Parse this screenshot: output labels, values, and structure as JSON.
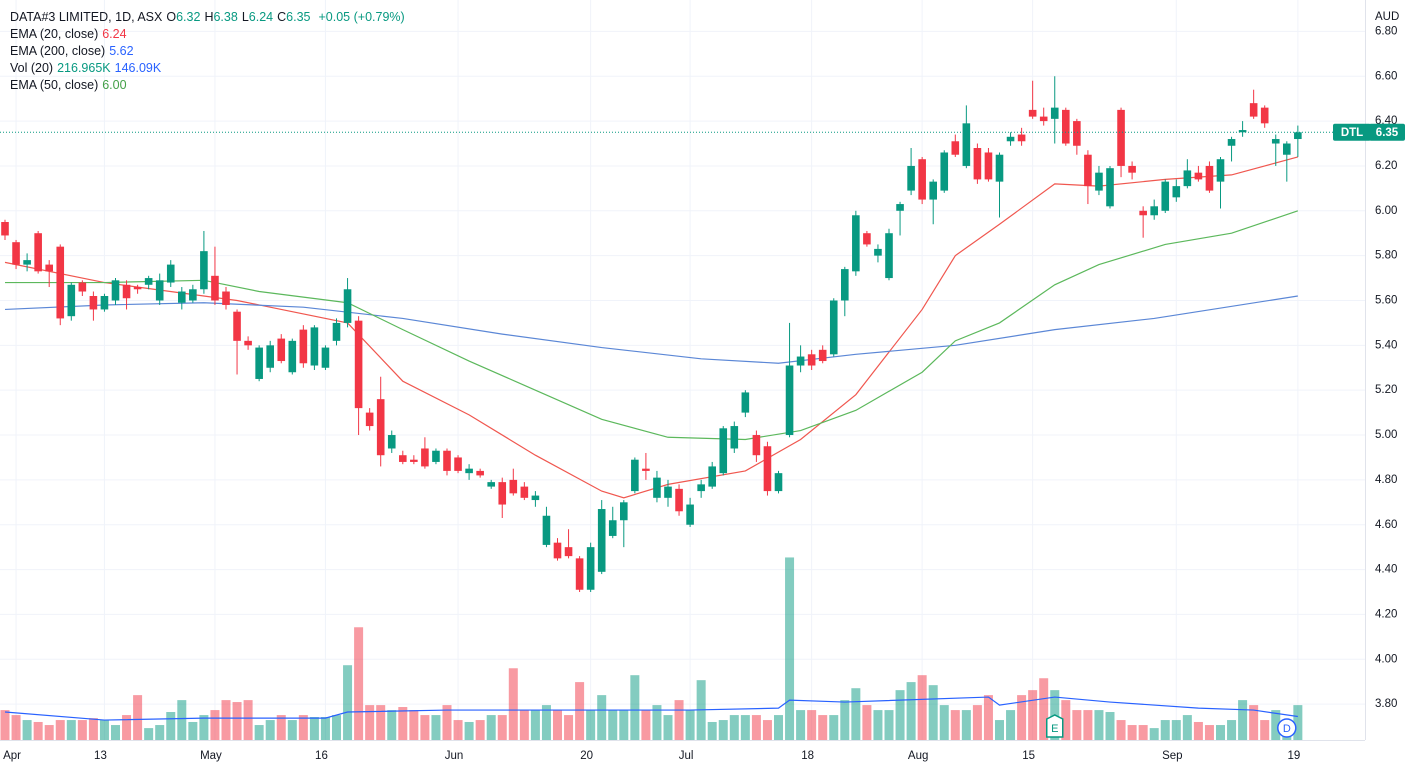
{
  "chart_data": {
    "type": "candlestick",
    "title": "DATA#3 LIMITED, 1D, ASX",
    "ohlc_header": [
      {
        "label": "O",
        "value": "6.32"
      },
      {
        "label": "H",
        "value": "6.38"
      },
      {
        "label": "L",
        "value": "6.24"
      },
      {
        "label": "C",
        "value": "6.35"
      }
    ],
    "change": "+0.05 (+0.79%)",
    "currency": "AUD",
    "price_tag": {
      "symbol": "DTL",
      "value": 6.35
    },
    "up_color": "#089981",
    "down_color": "#f23645",
    "grid": true,
    "categories": [
      null,
      "Apr",
      null,
      null,
      null,
      null,
      null,
      null,
      null,
      "13",
      null,
      null,
      null,
      null,
      null,
      null,
      null,
      null,
      null,
      "May",
      null,
      null,
      null,
      null,
      null,
      null,
      null,
      null,
      null,
      "16",
      null,
      null,
      null,
      null,
      null,
      null,
      null,
      null,
      null,
      null,
      null,
      "Jun",
      null,
      null,
      null,
      null,
      null,
      null,
      null,
      null,
      null,
      null,
      null,
      "20",
      null,
      null,
      null,
      null,
      null,
      null,
      null,
      null,
      "Jul",
      null,
      null,
      null,
      null,
      null,
      null,
      null,
      null,
      null,
      null,
      "18",
      null,
      null,
      null,
      null,
      null,
      null,
      null,
      null,
      null,
      "Aug",
      null,
      null,
      null,
      null,
      null,
      null,
      null,
      null,
      null,
      "15",
      null,
      null,
      null,
      null,
      null,
      null,
      null,
      null,
      null,
      null,
      null,
      null,
      "Sep",
      null,
      null,
      null,
      null,
      null,
      null,
      null,
      null,
      null,
      null,
      "19"
    ],
    "open": [
      5.95,
      5.86,
      5.76,
      5.9,
      5.76,
      5.84,
      5.53,
      5.68,
      5.62,
      5.56,
      5.6,
      5.67,
      5.66,
      5.67,
      5.6,
      5.68,
      5.59,
      5.6,
      5.65,
      5.71,
      5.64,
      5.55,
      5.42,
      5.25,
      5.3,
      5.43,
      5.28,
      5.47,
      5.31,
      5.3,
      5.42,
      5.5,
      5.51,
      5.1,
      5.16,
      4.94,
      4.91,
      4.89,
      4.94,
      4.88,
      4.93,
      4.9,
      4.83,
      4.84,
      4.77,
      4.79,
      4.8,
      4.77,
      4.71,
      4.51,
      4.52,
      4.5,
      4.45,
      4.31,
      4.39,
      4.55,
      4.62,
      4.75,
      4.85,
      4.72,
      4.72,
      4.76,
      4.6,
      4.75,
      4.77,
      4.83,
      4.94,
      5.1,
      5.0,
      4.95,
      4.75,
      5.0,
      5.31,
      5.36,
      5.38,
      5.36,
      5.6,
      5.73,
      5.9,
      5.8,
      5.7,
      6.0,
      6.09,
      6.23,
      6.05,
      6.09,
      6.31,
      6.2,
      6.28,
      6.26,
      6.13,
      6.31,
      6.34,
      6.45,
      6.42,
      6.41,
      6.45,
      6.4,
      6.25,
      6.09,
      6.02,
      6.45,
      6.2,
      6.0,
      5.98,
      6.0,
      6.06,
      6.11,
      6.17,
      6.2,
      6.13,
      6.29,
      6.35,
      6.48,
      6.46,
      6.3,
      6.25,
      6.32
    ],
    "high": [
      5.96,
      5.87,
      5.81,
      5.91,
      5.78,
      5.85,
      5.68,
      5.69,
      5.64,
      5.63,
      5.7,
      5.69,
      5.67,
      5.71,
      5.72,
      5.78,
      5.66,
      5.67,
      5.91,
      5.84,
      5.66,
      5.56,
      5.44,
      5.4,
      5.42,
      5.45,
      5.43,
      5.49,
      5.49,
      5.4,
      5.52,
      5.7,
      5.53,
      5.12,
      5.26,
      5.02,
      4.93,
      4.91,
      4.99,
      4.94,
      4.94,
      4.91,
      4.87,
      4.85,
      4.8,
      4.81,
      4.85,
      4.79,
      4.75,
      4.68,
      4.54,
      4.58,
      4.46,
      4.52,
      4.71,
      4.68,
      4.71,
      4.9,
      4.92,
      4.84,
      4.8,
      4.78,
      4.72,
      4.8,
      4.88,
      5.04,
      5.06,
      5.2,
      5.02,
      4.97,
      4.84,
      5.5,
      5.4,
      5.38,
      5.4,
      5.61,
      5.75,
      6.0,
      5.91,
      5.85,
      5.92,
      6.04,
      6.28,
      6.24,
      6.14,
      6.27,
      6.34,
      6.47,
      6.3,
      6.28,
      6.26,
      6.35,
      6.37,
      6.58,
      6.46,
      6.6,
      6.46,
      6.41,
      6.27,
      6.2,
      6.2,
      6.46,
      6.22,
      6.02,
      6.05,
      6.14,
      6.14,
      6.23,
      6.2,
      6.22,
      6.24,
      6.33,
      6.4,
      6.54,
      6.47,
      6.34,
      6.31,
      6.38
    ],
    "low": [
      5.87,
      5.74,
      5.73,
      5.72,
      5.66,
      5.49,
      5.51,
      5.62,
      5.51,
      5.55,
      5.58,
      5.56,
      5.63,
      5.65,
      5.58,
      5.66,
      5.56,
      5.59,
      5.63,
      5.58,
      5.56,
      5.27,
      5.38,
      5.24,
      5.28,
      5.32,
      5.27,
      5.3,
      5.29,
      5.29,
      5.4,
      5.48,
      5.0,
      5.02,
      4.86,
      4.92,
      4.87,
      4.87,
      4.85,
      4.87,
      4.82,
      4.83,
      4.8,
      4.81,
      4.76,
      4.63,
      4.73,
      4.71,
      4.68,
      4.5,
      4.44,
      4.45,
      4.3,
      4.3,
      4.38,
      4.54,
      4.5,
      4.74,
      4.8,
      4.7,
      4.68,
      4.64,
      4.59,
      4.72,
      4.76,
      4.82,
      4.92,
      5.08,
      4.88,
      4.73,
      4.74,
      4.99,
      5.28,
      5.29,
      5.32,
      5.35,
      5.53,
      5.71,
      5.84,
      5.77,
      5.69,
      5.89,
      6.07,
      6.03,
      5.94,
      6.08,
      6.24,
      6.19,
      6.12,
      6.13,
      5.97,
      6.29,
      6.29,
      6.41,
      6.38,
      6.3,
      6.29,
      6.25,
      6.03,
      6.07,
      6.01,
      6.15,
      6.14,
      5.88,
      5.96,
      5.99,
      6.04,
      6.1,
      6.13,
      6.08,
      6.01,
      6.22,
      6.33,
      6.41,
      6.37,
      6.2,
      6.13,
      6.24
    ],
    "close": [
      5.89,
      5.76,
      5.78,
      5.73,
      5.73,
      5.52,
      5.67,
      5.64,
      5.56,
      5.62,
      5.69,
      5.61,
      5.65,
      5.7,
      5.69,
      5.76,
      5.64,
      5.65,
      5.82,
      5.6,
      5.58,
      5.42,
      5.4,
      5.39,
      5.4,
      5.33,
      5.42,
      5.32,
      5.48,
      5.39,
      5.5,
      5.65,
      5.12,
      5.04,
      4.91,
      5.0,
      4.88,
      4.88,
      4.86,
      4.93,
      4.84,
      4.84,
      4.85,
      4.82,
      4.79,
      4.69,
      4.74,
      4.72,
      4.73,
      4.64,
      4.45,
      4.46,
      4.31,
      4.5,
      4.67,
      4.62,
      4.7,
      4.89,
      4.84,
      4.81,
      4.77,
      4.66,
      4.69,
      4.78,
      4.86,
      5.03,
      5.04,
      5.19,
      4.91,
      4.75,
      4.83,
      5.31,
      5.35,
      5.31,
      5.33,
      5.6,
      5.74,
      5.98,
      5.85,
      5.83,
      5.9,
      6.03,
      6.2,
      6.05,
      6.13,
      6.26,
      6.25,
      6.39,
      6.14,
      6.14,
      6.25,
      6.33,
      6.31,
      6.42,
      6.4,
      6.46,
      6.3,
      6.29,
      6.11,
      6.17,
      6.19,
      6.2,
      6.17,
      5.98,
      6.02,
      6.13,
      6.11,
      6.18,
      6.14,
      6.09,
      6.23,
      6.32,
      6.36,
      6.42,
      6.39,
      6.32,
      6.3,
      6.35
    ],
    "ylim": [
      3.64,
      6.94
    ],
    "yticks": [
      {
        "value": 3.8,
        "label": "3.80"
      },
      {
        "value": 4.0,
        "label": "4.00"
      },
      {
        "value": 4.2,
        "label": "4.20"
      },
      {
        "value": 4.4,
        "label": "4.40"
      },
      {
        "value": 4.6,
        "label": "4.60"
      },
      {
        "value": 4.8,
        "label": "4.80"
      },
      {
        "value": 5.0,
        "label": "5.00"
      },
      {
        "value": 5.2,
        "label": "5.20"
      },
      {
        "value": 5.4,
        "label": "5.40"
      },
      {
        "value": 5.6,
        "label": "5.60"
      },
      {
        "value": 5.8,
        "label": "5.80"
      },
      {
        "value": 6.0,
        "label": "6.00"
      },
      {
        "value": 6.2,
        "label": "6.20"
      },
      {
        "value": 6.4,
        "label": "6.40"
      },
      {
        "value": 6.6,
        "label": "6.60"
      },
      {
        "value": 6.8,
        "label": "6.80"
      }
    ],
    "series": [
      {
        "name": "EMA (20, close)",
        "last": "6.24",
        "color": "#f0574f",
        "x": [
          0,
          9,
          21,
          23,
          31,
          36,
          42,
          48,
          54,
          56,
          60,
          67,
          72,
          77,
          83,
          86,
          90,
          95,
          99,
          105,
          111,
          117
        ],
        "values": [
          5.77,
          5.68,
          5.6,
          5.58,
          5.5,
          5.24,
          5.09,
          4.91,
          4.75,
          4.72,
          4.78,
          4.84,
          4.98,
          5.18,
          5.56,
          5.8,
          5.94,
          6.12,
          6.11,
          6.14,
          6.16,
          6.24
        ]
      },
      {
        "name": "EMA (200, close)",
        "last": "5.62",
        "color": "#5b87d6",
        "x": [
          0,
          9,
          18,
          27,
          36,
          45,
          54,
          63,
          70,
          77,
          86,
          95,
          104,
          117
        ],
        "values": [
          5.56,
          5.58,
          5.59,
          5.57,
          5.52,
          5.45,
          5.39,
          5.34,
          5.32,
          5.36,
          5.4,
          5.47,
          5.52,
          5.62
        ]
      },
      {
        "name": "EMA (50, close)",
        "last": "6.00",
        "color": "#5cb85c",
        "x": [
          0,
          9,
          18,
          23,
          31,
          36,
          42,
          48,
          54,
          60,
          67,
          72,
          77,
          83,
          86,
          90,
          95,
          99,
          105,
          111,
          117
        ],
        "values": [
          5.68,
          5.68,
          5.69,
          5.64,
          5.59,
          5.47,
          5.33,
          5.2,
          5.07,
          4.99,
          4.98,
          5.02,
          5.11,
          5.28,
          5.42,
          5.5,
          5.67,
          5.76,
          5.85,
          5.9,
          6.0
        ]
      }
    ],
    "volume": {
      "name": "Vol (20)",
      "last": "216.965K",
      "ma_last": "146.09K",
      "up_color": "rgba(8,153,129,0.5)",
      "down_color": "rgba(242,54,69,0.5)",
      "vlim": [
        0,
        1200
      ],
      "values": [
        186,
        155,
        124,
        112,
        93,
        124,
        124,
        124,
        136,
        124,
        93,
        155,
        279,
        74,
        93,
        174,
        248,
        112,
        155,
        186,
        248,
        236,
        248,
        93,
        124,
        155,
        124,
        155,
        143,
        143,
        155,
        465,
        701,
        217,
        217,
        186,
        205,
        186,
        155,
        155,
        217,
        124,
        112,
        124,
        155,
        155,
        446,
        186,
        186,
        217,
        186,
        155,
        360,
        186,
        279,
        186,
        186,
        403,
        186,
        217,
        155,
        248,
        186,
        372,
        112,
        124,
        155,
        155,
        155,
        124,
        155,
        1135,
        186,
        186,
        155,
        155,
        248,
        322,
        217,
        186,
        186,
        310,
        360,
        403,
        341,
        217,
        186,
        186,
        217,
        279,
        124,
        186,
        279,
        310,
        384,
        310,
        248,
        186,
        186,
        186,
        174,
        124,
        93,
        93,
        74,
        124,
        124,
        155,
        112,
        93,
        93,
        124,
        248,
        217,
        124,
        186,
        124,
        216.965
      ],
      "ma": {
        "color": "#2962ff",
        "x": [
          0,
          9,
          18,
          29,
          31,
          40,
          50,
          62,
          70,
          71,
          76,
          89,
          90,
          95,
          100,
          108,
          113,
          117
        ],
        "values": [
          174,
          124,
          136,
          136,
          174,
          186,
          186,
          186,
          198,
          248,
          236,
          267,
          217,
          267,
          236,
          198,
          186,
          146.09
        ]
      }
    },
    "events": [
      {
        "label": "E",
        "at": 95
      },
      {
        "label": "D",
        "at": 116
      }
    ]
  }
}
